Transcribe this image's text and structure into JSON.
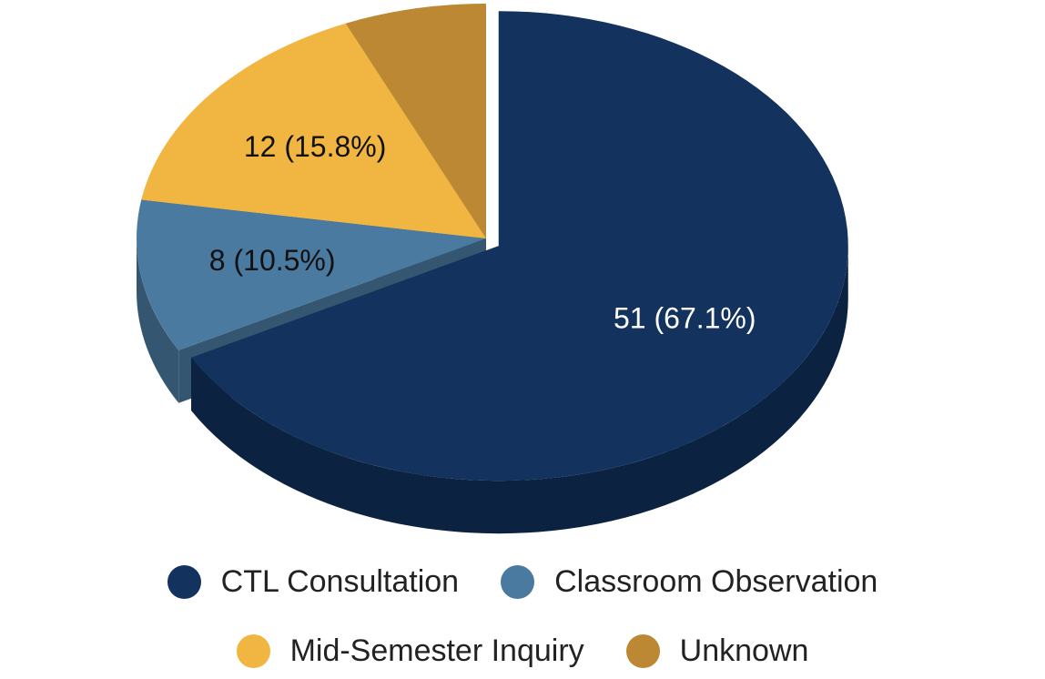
{
  "chart_data": {
    "type": "pie",
    "style": "3d, one slice exploded",
    "slices": [
      {
        "label": "CTL Consultation",
        "value": 51,
        "percent": 67.1,
        "data_label": "51 (67.1%)",
        "color": "#13325e",
        "side_color": "#0b2241",
        "label_color": "#ffffff"
      },
      {
        "label": "Classroom Observation",
        "value": 8,
        "percent": 10.5,
        "data_label": "8 (10.5%)",
        "color": "#4a7aa0",
        "side_color": "#355670",
        "label_color": "#111111"
      },
      {
        "label": "Mid-Semester Inquiry",
        "value": 12,
        "percent": 15.8,
        "data_label": "12 (15.8%)",
        "color": "#f1b642",
        "side_color": "#b78a32",
        "label_color": "#111111"
      },
      {
        "label": "Unknown",
        "value": 5,
        "percent": 6.6,
        "data_label": "",
        "color": "#bd8833",
        "side_color": "#8a6325",
        "label_color": "#111111"
      }
    ],
    "legend_position": "bottom"
  }
}
